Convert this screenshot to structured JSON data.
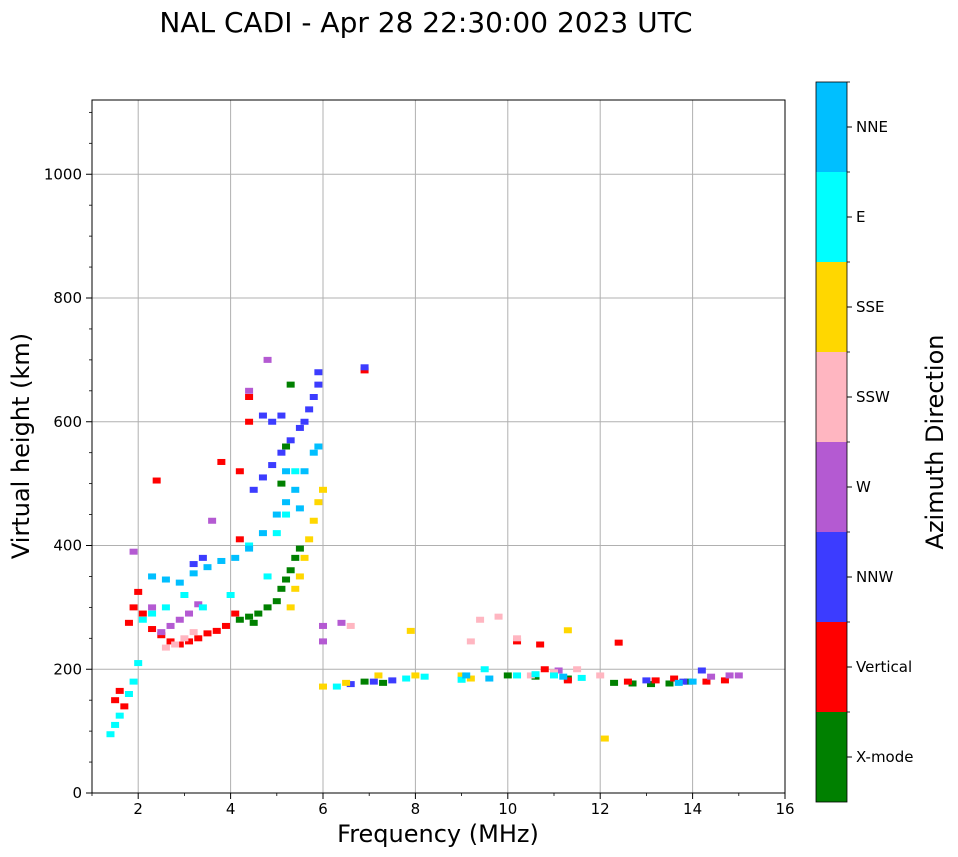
{
  "chart_data": {
    "type": "scatter",
    "title": "NAL CADI - Apr 28 22:30:00 2023 UTC",
    "xlabel": "Frequency (MHz)",
    "ylabel": "Virtual height (km)",
    "xlim": [
      1,
      16
    ],
    "ylim": [
      0,
      1120
    ],
    "xticks": [
      2,
      4,
      6,
      8,
      10,
      12,
      14,
      16
    ],
    "yticks": [
      0,
      200,
      400,
      600,
      800,
      1000
    ],
    "grid": true,
    "colorbar": {
      "label": "Azimuth Direction",
      "categories": [
        {
          "name": "X-mode",
          "color": "#008000"
        },
        {
          "name": "Vertical",
          "color": "#ff0000"
        },
        {
          "name": "NNW",
          "color": "#3c3cff"
        },
        {
          "name": "W",
          "color": "#b45ad2"
        },
        {
          "name": "SSW",
          "color": "#ffb6c1"
        },
        {
          "name": "SSE",
          "color": "#ffd700"
        },
        {
          "name": "E",
          "color": "#00ffff"
        },
        {
          "name": "NNE",
          "color": "#00bfff"
        }
      ]
    },
    "series": [
      {
        "name": "X-mode",
        "points": [
          [
            4.2,
            280
          ],
          [
            4.4,
            285
          ],
          [
            4.6,
            290
          ],
          [
            4.8,
            300
          ],
          [
            5.0,
            310
          ],
          [
            5.1,
            330
          ],
          [
            5.2,
            345
          ],
          [
            5.3,
            360
          ],
          [
            5.4,
            380
          ],
          [
            5.5,
            395
          ],
          [
            4.5,
            275
          ],
          [
            5.3,
            660
          ],
          [
            5.2,
            560
          ],
          [
            5.1,
            500
          ],
          [
            6.9,
            180
          ],
          [
            7.3,
            178
          ],
          [
            10.0,
            190
          ],
          [
            10.6,
            188
          ],
          [
            11.3,
            185
          ],
          [
            12.3,
            178
          ],
          [
            12.7,
            177
          ],
          [
            13.1,
            176
          ],
          [
            13.5,
            177
          ],
          [
            13.9,
            180
          ]
        ]
      },
      {
        "name": "Vertical",
        "points": [
          [
            1.5,
            150
          ],
          [
            1.6,
            165
          ],
          [
            1.7,
            140
          ],
          [
            1.8,
            275
          ],
          [
            1.9,
            300
          ],
          [
            2.0,
            325
          ],
          [
            2.1,
            290
          ],
          [
            2.3,
            265
          ],
          [
            2.5,
            255
          ],
          [
            2.7,
            245
          ],
          [
            2.9,
            240
          ],
          [
            3.1,
            245
          ],
          [
            3.3,
            250
          ],
          [
            3.5,
            258
          ],
          [
            3.7,
            262
          ],
          [
            3.9,
            270
          ],
          [
            4.1,
            290
          ],
          [
            4.2,
            410
          ],
          [
            4.2,
            520
          ],
          [
            4.4,
            600
          ],
          [
            4.4,
            640
          ],
          [
            3.8,
            535
          ],
          [
            2.4,
            505
          ],
          [
            6.9,
            683
          ],
          [
            10.2,
            245
          ],
          [
            10.7,
            240
          ],
          [
            11.3,
            182
          ],
          [
            12.4,
            243
          ],
          [
            12.6,
            180
          ],
          [
            13.2,
            182
          ],
          [
            13.6,
            185
          ],
          [
            14.3,
            180
          ],
          [
            14.7,
            182
          ],
          [
            10.8,
            200
          ]
        ]
      },
      {
        "name": "NNW",
        "points": [
          [
            3.2,
            370
          ],
          [
            3.4,
            380
          ],
          [
            4.5,
            490
          ],
          [
            4.7,
            510
          ],
          [
            4.9,
            530
          ],
          [
            5.1,
            550
          ],
          [
            5.3,
            570
          ],
          [
            5.5,
            590
          ],
          [
            5.6,
            600
          ],
          [
            5.7,
            620
          ],
          [
            5.8,
            640
          ],
          [
            5.9,
            660
          ],
          [
            5.9,
            680
          ],
          [
            4.7,
            610
          ],
          [
            4.9,
            600
          ],
          [
            5.1,
            610
          ],
          [
            6.9,
            688
          ],
          [
            6.6,
            176
          ],
          [
            7.1,
            180
          ],
          [
            7.5,
            182
          ],
          [
            13.0,
            182
          ],
          [
            13.8,
            180
          ],
          [
            14.2,
            198
          ]
        ]
      },
      {
        "name": "W",
        "points": [
          [
            1.9,
            390
          ],
          [
            2.3,
            300
          ],
          [
            2.5,
            260
          ],
          [
            2.7,
            270
          ],
          [
            2.9,
            280
          ],
          [
            3.1,
            290
          ],
          [
            3.3,
            305
          ],
          [
            3.6,
            440
          ],
          [
            4.4,
            650
          ],
          [
            4.8,
            700
          ],
          [
            6.0,
            270
          ],
          [
            6.0,
            245
          ],
          [
            6.4,
            275
          ],
          [
            14.4,
            188
          ],
          [
            14.8,
            190
          ],
          [
            15.0,
            190
          ],
          [
            11.1,
            198
          ]
        ]
      },
      {
        "name": "SSW",
        "points": [
          [
            2.6,
            235
          ],
          [
            2.8,
            240
          ],
          [
            3.0,
            250
          ],
          [
            3.2,
            260
          ],
          [
            6.6,
            270
          ],
          [
            9.2,
            245
          ],
          [
            9.4,
            280
          ],
          [
            9.8,
            285
          ],
          [
            10.2,
            250
          ],
          [
            10.5,
            190
          ],
          [
            11.0,
            195
          ],
          [
            11.5,
            200
          ],
          [
            12.0,
            190
          ]
        ]
      },
      {
        "name": "SSE",
        "points": [
          [
            5.3,
            300
          ],
          [
            5.4,
            330
          ],
          [
            5.5,
            350
          ],
          [
            5.6,
            380
          ],
          [
            5.7,
            410
          ],
          [
            5.8,
            440
          ],
          [
            5.9,
            470
          ],
          [
            6.0,
            490
          ],
          [
            6.0,
            172
          ],
          [
            6.5,
            178
          ],
          [
            7.2,
            190
          ],
          [
            7.9,
            262
          ],
          [
            8.0,
            190
          ],
          [
            9.0,
            190
          ],
          [
            9.2,
            185
          ],
          [
            11.3,
            263
          ],
          [
            12.1,
            88
          ]
        ]
      },
      {
        "name": "E",
        "points": [
          [
            1.4,
            95
          ],
          [
            1.5,
            110
          ],
          [
            1.6,
            125
          ],
          [
            1.8,
            160
          ],
          [
            1.9,
            180
          ],
          [
            2.0,
            210
          ],
          [
            2.1,
            280
          ],
          [
            2.3,
            290
          ],
          [
            2.6,
            300
          ],
          [
            3.0,
            320
          ],
          [
            3.4,
            300
          ],
          [
            4.0,
            320
          ],
          [
            4.4,
            400
          ],
          [
            4.8,
            350
          ],
          [
            5.0,
            420
          ],
          [
            5.2,
            450
          ],
          [
            5.4,
            520
          ],
          [
            6.3,
            172
          ],
          [
            7.8,
            185
          ],
          [
            8.2,
            188
          ],
          [
            9.0,
            183
          ],
          [
            9.5,
            200
          ],
          [
            10.2,
            190
          ],
          [
            10.6,
            192
          ],
          [
            11.0,
            190
          ],
          [
            11.6,
            186
          ]
        ]
      },
      {
        "name": "NNE",
        "points": [
          [
            2.3,
            350
          ],
          [
            2.6,
            345
          ],
          [
            2.9,
            340
          ],
          [
            3.2,
            355
          ],
          [
            3.5,
            365
          ],
          [
            3.8,
            375
          ],
          [
            4.1,
            380
          ],
          [
            4.4,
            395
          ],
          [
            4.7,
            420
          ],
          [
            5.0,
            450
          ],
          [
            5.2,
            470
          ],
          [
            5.4,
            490
          ],
          [
            5.6,
            520
          ],
          [
            5.8,
            550
          ],
          [
            5.9,
            560
          ],
          [
            5.5,
            460
          ],
          [
            5.2,
            520
          ],
          [
            9.1,
            190
          ],
          [
            9.6,
            185
          ],
          [
            11.2,
            188
          ],
          [
            13.7,
            178
          ],
          [
            14.0,
            180
          ]
        ]
      }
    ]
  }
}
